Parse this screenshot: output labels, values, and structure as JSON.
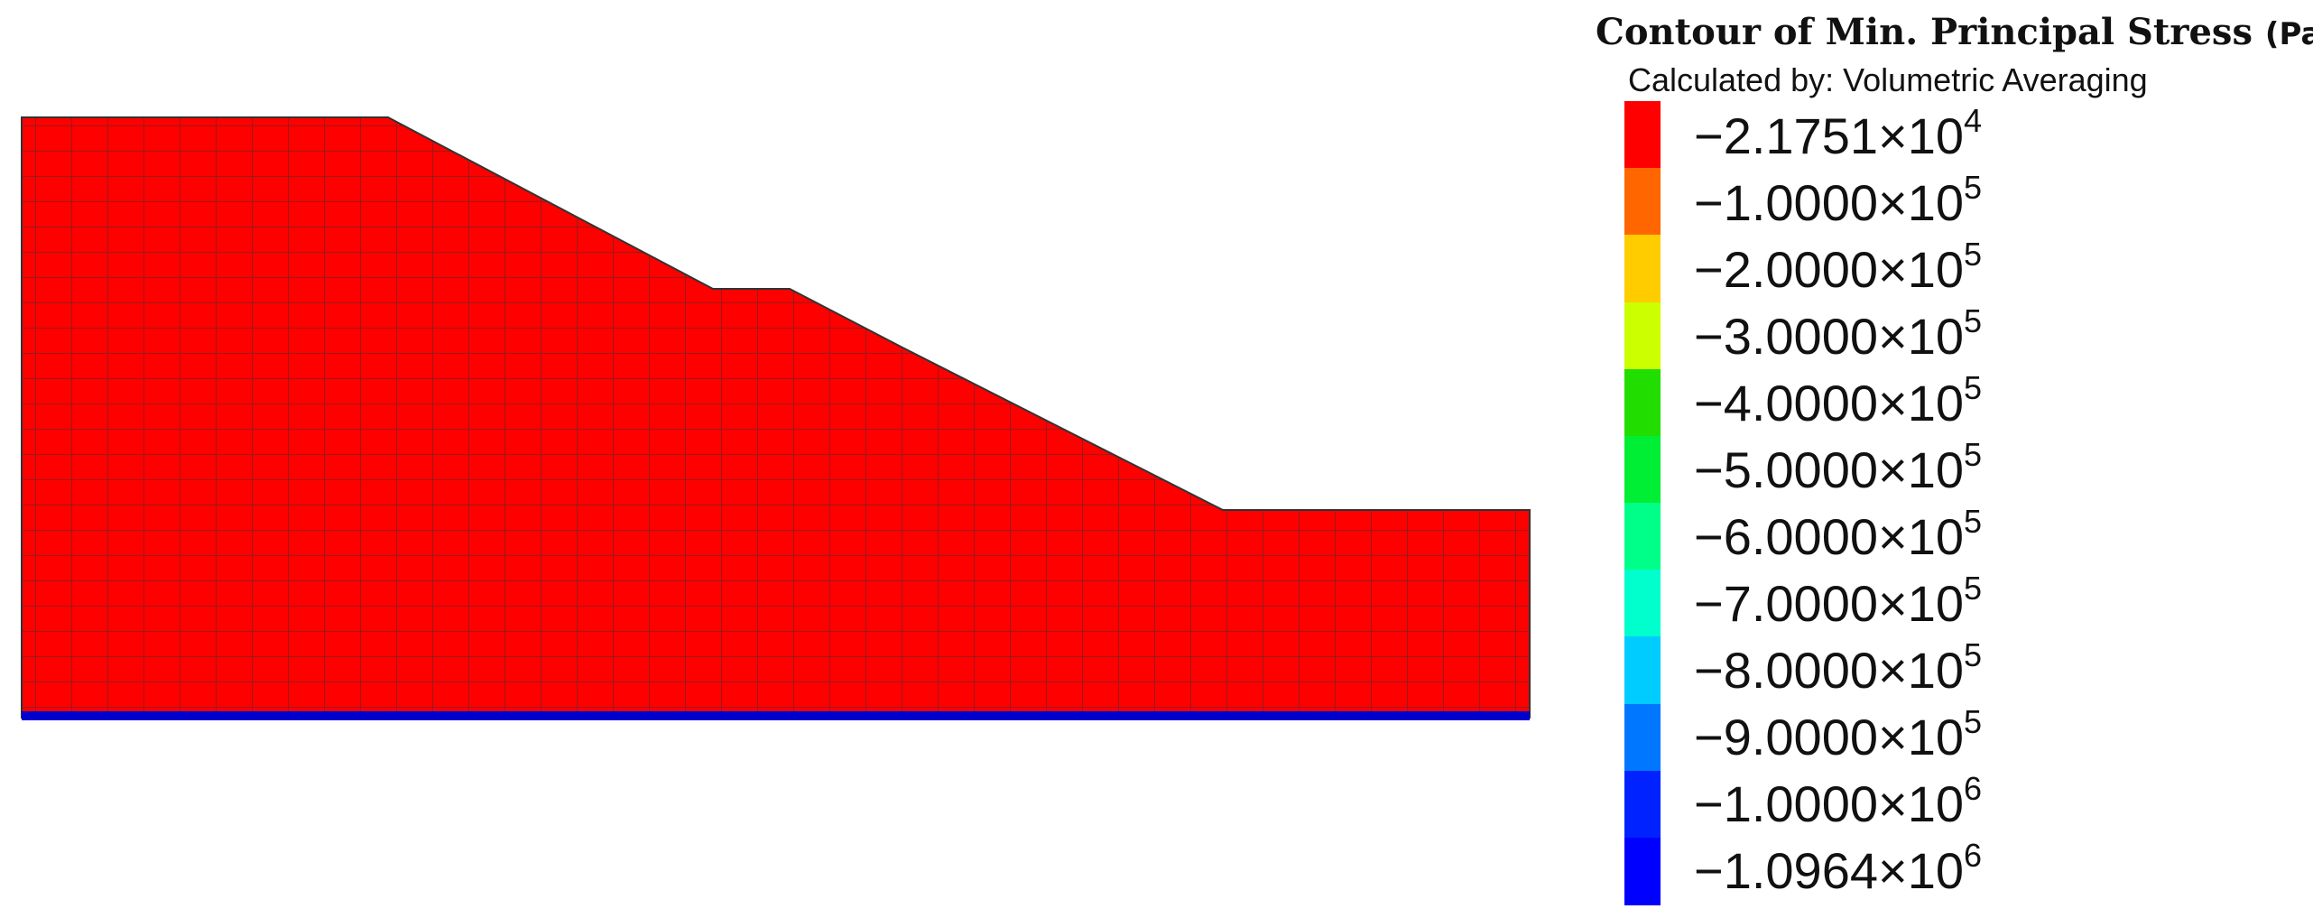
{
  "legend": {
    "title": "Contour of Min. Principal Stress",
    "unit": "(Pa)",
    "subtitle": "Calculated by: Volumetric Averaging",
    "levels": [
      {
        "mantissa": "−2.1751",
        "exponent": "4",
        "color": "#ff0000"
      },
      {
        "mantissa": "−1.0000",
        "exponent": "5",
        "color": "#ff6600"
      },
      {
        "mantissa": "−2.0000",
        "exponent": "5",
        "color": "#ffcc00"
      },
      {
        "mantissa": "−3.0000",
        "exponent": "5",
        "color": "#ccff00"
      },
      {
        "mantissa": "−4.0000",
        "exponent": "5",
        "color": "#22dd00"
      },
      {
        "mantissa": "−5.0000",
        "exponent": "5",
        "color": "#00ee33"
      },
      {
        "mantissa": "−6.0000",
        "exponent": "5",
        "color": "#00ff88"
      },
      {
        "mantissa": "−7.0000",
        "exponent": "5",
        "color": "#00ffcc"
      },
      {
        "mantissa": "−8.0000",
        "exponent": "5",
        "color": "#00ccff"
      },
      {
        "mantissa": "−9.0000",
        "exponent": "5",
        "color": "#0077ff"
      },
      {
        "mantissa": "−1.0000",
        "exponent": "6",
        "color": "#0022ff"
      },
      {
        "mantissa": "−1.0964",
        "exponent": "6",
        "color": "#0000ff"
      }
    ]
  }
}
